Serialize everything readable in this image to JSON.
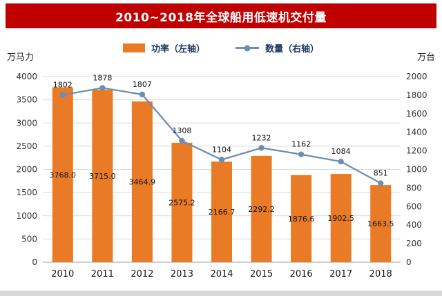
{
  "title": "2010~2018年全球船用低速机交付量",
  "legend": {
    "bar_label": "功率（左轴）",
    "line_label": "数量（右轴）"
  },
  "chart_data": {
    "type": "combo",
    "title": "2010~2018年全球船用低速机交付量",
    "categories": [
      "2010",
      "2011",
      "2012",
      "2013",
      "2014",
      "2015",
      "2016",
      "2017",
      "2018"
    ],
    "series": [
      {
        "name": "功率（左轴）",
        "type": "bar",
        "axis": "left",
        "values": [
          3768.0,
          3715.0,
          3464.9,
          2575.2,
          2166.7,
          2292.2,
          1876.6,
          1902.5,
          1663.5
        ],
        "labels": [
          "3768.0",
          "3715.0",
          "3464.9",
          "2575.2",
          "2166.7",
          "2292.2",
          "1876.6",
          "1902.5",
          "1663.5"
        ]
      },
      {
        "name": "数量（右轴）",
        "type": "line",
        "axis": "right",
        "values": [
          1802,
          1878,
          1807,
          1308,
          1104,
          1232,
          1162,
          1084,
          851
        ],
        "labels": [
          "1802",
          "1878",
          "1807",
          "1308",
          "1104",
          "1232",
          "1162",
          "1084",
          "851"
        ]
      }
    ],
    "left_axis": {
      "label": "万马力",
      "min": 0,
      "max": 4000,
      "step": 500,
      "ticks": [
        0,
        500,
        1000,
        1500,
        2000,
        2500,
        3000,
        3500,
        4000
      ]
    },
    "right_axis": {
      "label": "万台",
      "min": 0,
      "max": 2000,
      "step": 200,
      "ticks": [
        0,
        200,
        400,
        600,
        800,
        1000,
        1200,
        1400,
        1600,
        1800,
        2000
      ]
    },
    "grid": true,
    "legend_position": "top",
    "colors": {
      "bar": "#E97B26",
      "line": "#6C8EB4",
      "title_bg": "#C00000",
      "title_text": "#FFFFFF",
      "grid": "#D9D9D9",
      "axis_line": "#9E9E9E",
      "label_text": "#111111"
    }
  }
}
